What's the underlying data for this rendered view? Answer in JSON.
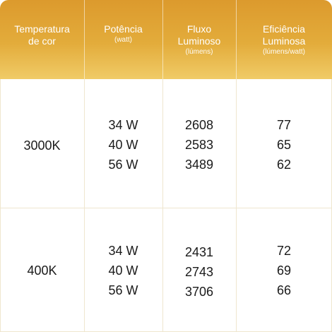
{
  "header": {
    "columns": [
      {
        "title": "Temperatura\nde cor",
        "subtitle": ""
      },
      {
        "title": "Potência",
        "subtitle": "(watt)"
      },
      {
        "title": "Fluxo\nLuminoso",
        "subtitle": "(lúmens)"
      },
      {
        "title": "Eficiência\nLuminosa",
        "subtitle": "(lúmens/watt)"
      }
    ]
  },
  "rows": [
    {
      "temperature": "3000K",
      "power": [
        "34 W",
        "40 W",
        "56 W"
      ],
      "flux": [
        "2608",
        "2583",
        "3489"
      ],
      "efficiency": [
        "77",
        "65",
        "62"
      ]
    },
    {
      "temperature": "400K",
      "power": [
        "34 W",
        "40 W",
        "56 W"
      ],
      "flux": [
        "2431",
        "2743",
        "3706"
      ],
      "efficiency": [
        "72",
        "69",
        "66"
      ]
    }
  ],
  "colors": {
    "header_top": "#dc9a2d",
    "header_bottom": "#f0cb67",
    "grid_line": "#efe6cf",
    "text": "#1a1a1a"
  }
}
